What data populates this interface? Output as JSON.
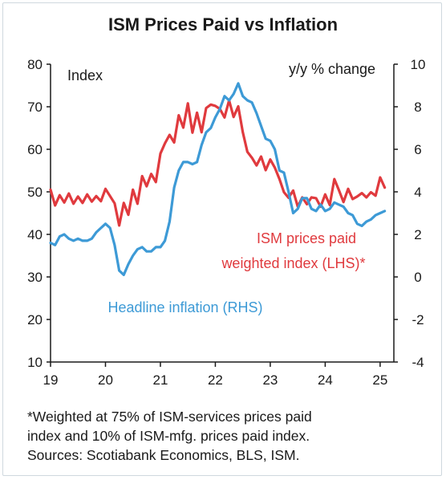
{
  "chart_data": {
    "type": "line",
    "title": "ISM Prices Paid vs Inflation",
    "left_axis": {
      "label": "Index",
      "ylim": [
        10,
        80
      ],
      "ticks": [
        10,
        20,
        30,
        40,
        50,
        60,
        70,
        80
      ]
    },
    "right_axis": {
      "label": "y/y % change",
      "ylim": [
        -4,
        10
      ],
      "ticks": [
        -4,
        -2,
        0,
        2,
        4,
        6,
        8,
        10
      ]
    },
    "x_axis": {
      "xlim": [
        2019.0,
        2025.25
      ],
      "ticks": [
        2019,
        2020,
        2021,
        2022,
        2023,
        2024,
        2025
      ],
      "tick_labels": [
        "19",
        "20",
        "21",
        "22",
        "23",
        "24",
        "25"
      ]
    },
    "grid": false,
    "series": [
      {
        "name": "ISM prices paid weighted index (LHS)",
        "axis": "left",
        "color": "#e03a3e",
        "label_lines": [
          "ISM prices paid",
          "weighted index (LHS)*"
        ],
        "x": [
          2019.0,
          2019.083,
          2019.167,
          2019.25,
          2019.333,
          2019.417,
          2019.5,
          2019.583,
          2019.667,
          2019.75,
          2019.833,
          2019.917,
          2020.0,
          2020.083,
          2020.167,
          2020.25,
          2020.333,
          2020.417,
          2020.5,
          2020.583,
          2020.667,
          2020.75,
          2020.833,
          2020.917,
          2021.0,
          2021.083,
          2021.167,
          2021.25,
          2021.333,
          2021.417,
          2021.5,
          2021.583,
          2021.667,
          2021.75,
          2021.833,
          2021.917,
          2022.0,
          2022.083,
          2022.167,
          2022.25,
          2022.333,
          2022.417,
          2022.5,
          2022.583,
          2022.667,
          2022.75,
          2022.833,
          2022.917,
          2023.0,
          2023.083,
          2023.167,
          2023.25,
          2023.333,
          2023.417,
          2023.5,
          2023.583,
          2023.667,
          2023.75,
          2023.833,
          2023.917,
          2024.0,
          2024.083,
          2024.167,
          2024.25,
          2024.333,
          2024.417,
          2024.5,
          2024.583,
          2024.667,
          2024.75,
          2024.833,
          2024.917,
          2025.0,
          2025.083
        ],
        "values": [
          50.5,
          46.8,
          49.2,
          47.5,
          49.6,
          47.2,
          48.9,
          47.4,
          49.4,
          47.7,
          49.0,
          47.8,
          50.7,
          49.0,
          47.3,
          42.1,
          47.4,
          44.6,
          50.5,
          47.2,
          53.7,
          51.3,
          54.2,
          52.3,
          59.0,
          61.4,
          63.4,
          61.6,
          68.0,
          65.1,
          70.8,
          63.9,
          68.6,
          64.0,
          69.7,
          70.5,
          70.2,
          69.5,
          67.5,
          71.5,
          67.6,
          70.1,
          64.0,
          59.4,
          58.0,
          56.2,
          58.3,
          55.1,
          57.6,
          55.7,
          53.0,
          49.9,
          48.6,
          50.3,
          46.5,
          48.7,
          47.1,
          48.7,
          48.5,
          46.5,
          49.4,
          46.9,
          53.0,
          50.4,
          47.6,
          50.7,
          48.3,
          48.9,
          49.7,
          48.7,
          49.9,
          49.1,
          53.4,
          51.0
        ]
      },
      {
        "name": "Headline inflation (RHS)",
        "axis": "right",
        "color": "#3d9ad6",
        "label_lines": [
          "Headline inflation (RHS)"
        ],
        "x": [
          2019.0,
          2019.083,
          2019.167,
          2019.25,
          2019.333,
          2019.417,
          2019.5,
          2019.583,
          2019.667,
          2019.75,
          2019.833,
          2019.917,
          2020.0,
          2020.083,
          2020.167,
          2020.25,
          2020.333,
          2020.417,
          2020.5,
          2020.583,
          2020.667,
          2020.75,
          2020.833,
          2020.917,
          2021.0,
          2021.083,
          2021.167,
          2021.25,
          2021.333,
          2021.417,
          2021.5,
          2021.583,
          2021.667,
          2021.75,
          2021.833,
          2021.917,
          2022.0,
          2022.083,
          2022.167,
          2022.25,
          2022.333,
          2022.417,
          2022.5,
          2022.583,
          2022.667,
          2022.75,
          2022.833,
          2022.917,
          2023.0,
          2023.083,
          2023.167,
          2023.25,
          2023.333,
          2023.417,
          2023.5,
          2023.583,
          2023.667,
          2023.75,
          2023.833,
          2023.917,
          2024.0,
          2024.083,
          2024.167,
          2024.25,
          2024.333,
          2024.417,
          2024.5,
          2024.583,
          2024.667,
          2024.75,
          2024.833,
          2024.917,
          2025.0,
          2025.083
        ],
        "values": [
          1.6,
          1.5,
          1.9,
          2.0,
          1.8,
          1.7,
          1.8,
          1.7,
          1.7,
          1.8,
          2.1,
          2.3,
          2.5,
          2.3,
          1.5,
          0.3,
          0.1,
          0.6,
          1.0,
          1.3,
          1.4,
          1.2,
          1.2,
          1.4,
          1.4,
          1.7,
          2.6,
          4.2,
          5.0,
          5.4,
          5.4,
          5.3,
          5.4,
          6.2,
          6.8,
          7.0,
          7.5,
          7.9,
          8.5,
          8.3,
          8.6,
          9.1,
          8.5,
          8.3,
          8.2,
          7.7,
          7.1,
          6.5,
          6.4,
          6.0,
          5.0,
          4.9,
          4.0,
          3.0,
          3.2,
          3.7,
          3.7,
          3.2,
          3.1,
          3.4,
          3.1,
          3.2,
          3.5,
          3.4,
          3.3,
          3.0,
          2.9,
          2.5,
          2.4,
          2.6,
          2.7,
          2.9,
          3.0,
          3.1
        ]
      }
    ]
  }
}
